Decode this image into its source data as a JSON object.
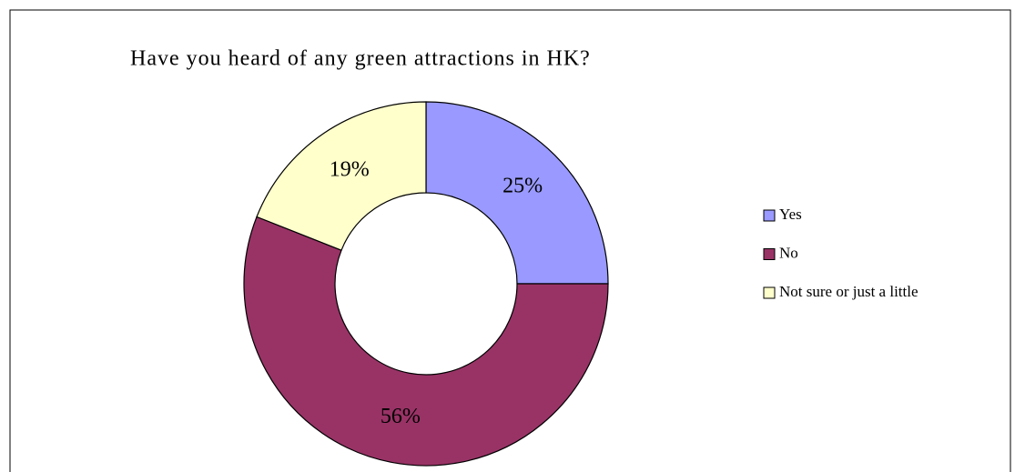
{
  "chart_data": {
    "type": "donut",
    "title": "Have you heard of any green attractions in HK?",
    "categories": [
      "Yes",
      "No",
      "Not sure or just a little"
    ],
    "values": [
      25,
      56,
      19
    ],
    "value_labels": [
      "25%",
      "56%",
      "19%"
    ],
    "colors": [
      "#9999ff",
      "#993366",
      "#ffffcc"
    ],
    "legend": "right"
  }
}
